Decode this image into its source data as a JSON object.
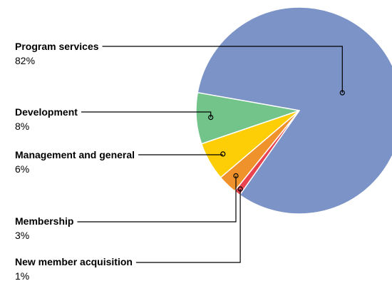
{
  "chart_data": {
    "type": "pie",
    "title": "",
    "legend": "none",
    "slices": [
      {
        "label": "Program services",
        "value": 82,
        "display": "82%",
        "color": "#7b93c6"
      },
      {
        "label": "Development",
        "value": 8,
        "display": "8%",
        "color": "#72c48a"
      },
      {
        "label": "Management and general",
        "value": 6,
        "display": "6%",
        "color": "#fdcd05"
      },
      {
        "label": "Membership",
        "value": 3,
        "display": "3%",
        "color": "#f0922b"
      },
      {
        "label": "New member acquisition",
        "value": 1,
        "display": "1%",
        "color": "#e8434f"
      }
    ]
  }
}
